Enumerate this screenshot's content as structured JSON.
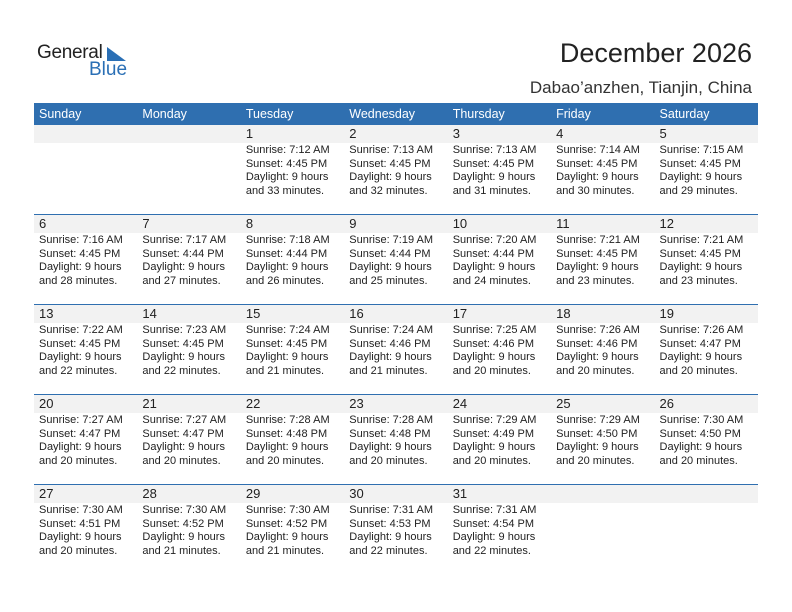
{
  "logo": {
    "general": "General",
    "blue": "Blue"
  },
  "title": "December 2026",
  "location": "Dabao’anzhen, Tianjin, China",
  "weekdays": [
    "Sunday",
    "Monday",
    "Tuesday",
    "Wednesday",
    "Thursday",
    "Friday",
    "Saturday"
  ],
  "weeks": [
    [
      null,
      null,
      {
        "day": "1",
        "sunrise": "Sunrise: 7:12 AM",
        "sunset": "Sunset: 4:45 PM",
        "daylight": "Daylight: 9 hours",
        "minutes": "and 33 minutes."
      },
      {
        "day": "2",
        "sunrise": "Sunrise: 7:13 AM",
        "sunset": "Sunset: 4:45 PM",
        "daylight": "Daylight: 9 hours",
        "minutes": "and 32 minutes."
      },
      {
        "day": "3",
        "sunrise": "Sunrise: 7:13 AM",
        "sunset": "Sunset: 4:45 PM",
        "daylight": "Daylight: 9 hours",
        "minutes": "and 31 minutes."
      },
      {
        "day": "4",
        "sunrise": "Sunrise: 7:14 AM",
        "sunset": "Sunset: 4:45 PM",
        "daylight": "Daylight: 9 hours",
        "minutes": "and 30 minutes."
      },
      {
        "day": "5",
        "sunrise": "Sunrise: 7:15 AM",
        "sunset": "Sunset: 4:45 PM",
        "daylight": "Daylight: 9 hours",
        "minutes": "and 29 minutes."
      }
    ],
    [
      {
        "day": "6",
        "sunrise": "Sunrise: 7:16 AM",
        "sunset": "Sunset: 4:45 PM",
        "daylight": "Daylight: 9 hours",
        "minutes": "and 28 minutes."
      },
      {
        "day": "7",
        "sunrise": "Sunrise: 7:17 AM",
        "sunset": "Sunset: 4:44 PM",
        "daylight": "Daylight: 9 hours",
        "minutes": "and 27 minutes."
      },
      {
        "day": "8",
        "sunrise": "Sunrise: 7:18 AM",
        "sunset": "Sunset: 4:44 PM",
        "daylight": "Daylight: 9 hours",
        "minutes": "and 26 minutes."
      },
      {
        "day": "9",
        "sunrise": "Sunrise: 7:19 AM",
        "sunset": "Sunset: 4:44 PM",
        "daylight": "Daylight: 9 hours",
        "minutes": "and 25 minutes."
      },
      {
        "day": "10",
        "sunrise": "Sunrise: 7:20 AM",
        "sunset": "Sunset: 4:44 PM",
        "daylight": "Daylight: 9 hours",
        "minutes": "and 24 minutes."
      },
      {
        "day": "11",
        "sunrise": "Sunrise: 7:21 AM",
        "sunset": "Sunset: 4:45 PM",
        "daylight": "Daylight: 9 hours",
        "minutes": "and 23 minutes."
      },
      {
        "day": "12",
        "sunrise": "Sunrise: 7:21 AM",
        "sunset": "Sunset: 4:45 PM",
        "daylight": "Daylight: 9 hours",
        "minutes": "and 23 minutes."
      }
    ],
    [
      {
        "day": "13",
        "sunrise": "Sunrise: 7:22 AM",
        "sunset": "Sunset: 4:45 PM",
        "daylight": "Daylight: 9 hours",
        "minutes": "and 22 minutes."
      },
      {
        "day": "14",
        "sunrise": "Sunrise: 7:23 AM",
        "sunset": "Sunset: 4:45 PM",
        "daylight": "Daylight: 9 hours",
        "minutes": "and 22 minutes."
      },
      {
        "day": "15",
        "sunrise": "Sunrise: 7:24 AM",
        "sunset": "Sunset: 4:45 PM",
        "daylight": "Daylight: 9 hours",
        "minutes": "and 21 minutes."
      },
      {
        "day": "16",
        "sunrise": "Sunrise: 7:24 AM",
        "sunset": "Sunset: 4:46 PM",
        "daylight": "Daylight: 9 hours",
        "minutes": "and 21 minutes."
      },
      {
        "day": "17",
        "sunrise": "Sunrise: 7:25 AM",
        "sunset": "Sunset: 4:46 PM",
        "daylight": "Daylight: 9 hours",
        "minutes": "and 20 minutes."
      },
      {
        "day": "18",
        "sunrise": "Sunrise: 7:26 AM",
        "sunset": "Sunset: 4:46 PM",
        "daylight": "Daylight: 9 hours",
        "minutes": "and 20 minutes."
      },
      {
        "day": "19",
        "sunrise": "Sunrise: 7:26 AM",
        "sunset": "Sunset: 4:47 PM",
        "daylight": "Daylight: 9 hours",
        "minutes": "and 20 minutes."
      }
    ],
    [
      {
        "day": "20",
        "sunrise": "Sunrise: 7:27 AM",
        "sunset": "Sunset: 4:47 PM",
        "daylight": "Daylight: 9 hours",
        "minutes": "and 20 minutes."
      },
      {
        "day": "21",
        "sunrise": "Sunrise: 7:27 AM",
        "sunset": "Sunset: 4:47 PM",
        "daylight": "Daylight: 9 hours",
        "minutes": "and 20 minutes."
      },
      {
        "day": "22",
        "sunrise": "Sunrise: 7:28 AM",
        "sunset": "Sunset: 4:48 PM",
        "daylight": "Daylight: 9 hours",
        "minutes": "and 20 minutes."
      },
      {
        "day": "23",
        "sunrise": "Sunrise: 7:28 AM",
        "sunset": "Sunset: 4:48 PM",
        "daylight": "Daylight: 9 hours",
        "minutes": "and 20 minutes."
      },
      {
        "day": "24",
        "sunrise": "Sunrise: 7:29 AM",
        "sunset": "Sunset: 4:49 PM",
        "daylight": "Daylight: 9 hours",
        "minutes": "and 20 minutes."
      },
      {
        "day": "25",
        "sunrise": "Sunrise: 7:29 AM",
        "sunset": "Sunset: 4:50 PM",
        "daylight": "Daylight: 9 hours",
        "minutes": "and 20 minutes."
      },
      {
        "day": "26",
        "sunrise": "Sunrise: 7:30 AM",
        "sunset": "Sunset: 4:50 PM",
        "daylight": "Daylight: 9 hours",
        "minutes": "and 20 minutes."
      }
    ],
    [
      {
        "day": "27",
        "sunrise": "Sunrise: 7:30 AM",
        "sunset": "Sunset: 4:51 PM",
        "daylight": "Daylight: 9 hours",
        "minutes": "and 20 minutes."
      },
      {
        "day": "28",
        "sunrise": "Sunrise: 7:30 AM",
        "sunset": "Sunset: 4:52 PM",
        "daylight": "Daylight: 9 hours",
        "minutes": "and 21 minutes."
      },
      {
        "day": "29",
        "sunrise": "Sunrise: 7:30 AM",
        "sunset": "Sunset: 4:52 PM",
        "daylight": "Daylight: 9 hours",
        "minutes": "and 21 minutes."
      },
      {
        "day": "30",
        "sunrise": "Sunrise: 7:31 AM",
        "sunset": "Sunset: 4:53 PM",
        "daylight": "Daylight: 9 hours",
        "minutes": "and 22 minutes."
      },
      {
        "day": "31",
        "sunrise": "Sunrise: 7:31 AM",
        "sunset": "Sunset: 4:54 PM",
        "daylight": "Daylight: 9 hours",
        "minutes": "and 22 minutes."
      },
      null,
      null
    ]
  ],
  "colors": {
    "accent": "#2f6fb0",
    "date_strip": "#f2f2f2",
    "logo_blue": "#2a6fb5"
  }
}
